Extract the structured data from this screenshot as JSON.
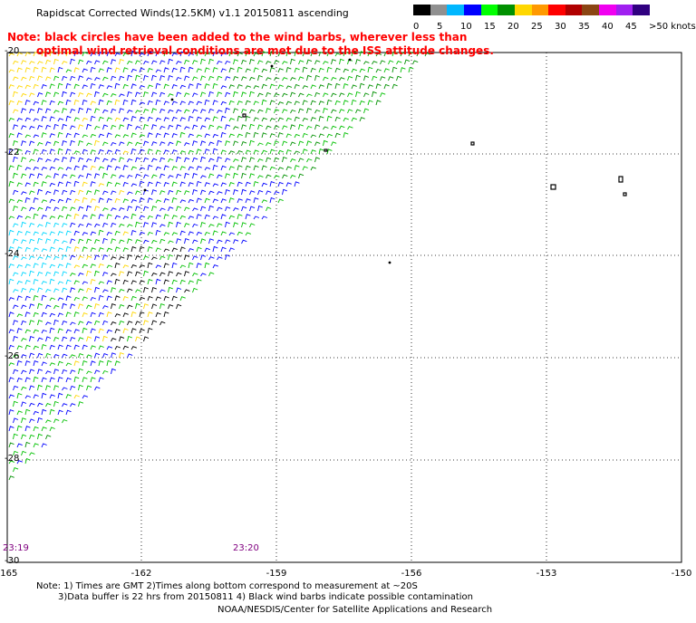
{
  "title": "Rapidscat Corrected Winds(12.5KM) v1.1 20150811 ascending",
  "note_lines": [
    "Note: black circles have been added to the wind barbs, wherever less than",
    "optimal wind retrieval conditions are met due to the ISS attitude changes."
  ],
  "colorbar": {
    "colors": [
      "#000000",
      "#909090",
      "#00b7ff",
      "#0000ff",
      "#00ff00",
      "#009000",
      "#ffd700",
      "#ff9900",
      "#ff0000",
      "#b00000",
      "#8b4513",
      "#f000f0",
      "#a020f0",
      "#300080"
    ],
    "labels": [
      "0",
      "5",
      "10",
      "15",
      "20",
      "25",
      "30",
      "35",
      "40",
      "45",
      ">50 knots"
    ]
  },
  "axes": {
    "x_ticks": [
      "-165",
      "-162",
      "-159",
      "-156",
      "-153",
      "-150"
    ],
    "y_ticks": [
      "-20",
      "-22",
      "-24",
      "-26",
      "-28",
      "-30"
    ],
    "grid": true
  },
  "pass_times": [
    "23:19",
    "23:20"
  ],
  "footer": {
    "line1": "Note: 1) Times are GMT 2)Times along bottom correspond to measurement at ~20S",
    "line2": "3)Data buffer is 22 hrs from 20150811 4) Black wind barbs indicate possible contamination",
    "line3": "NOAA/NESDIS/Center for Satellite Applications and Research"
  }
}
